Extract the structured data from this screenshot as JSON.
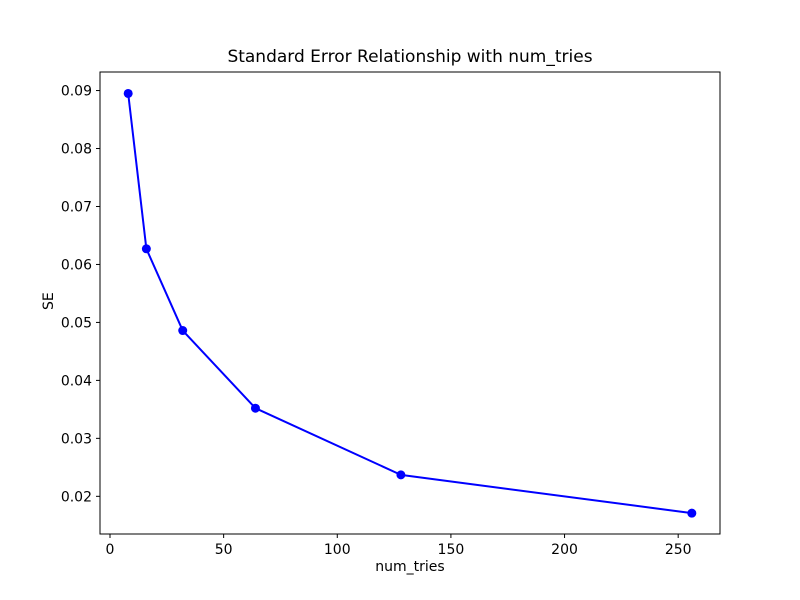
{
  "figure": {
    "background": "#ffffff",
    "text_color": "#000000",
    "spine_color": "#000000"
  },
  "chart_data": {
    "type": "line",
    "title": "Standard Error Relationship with num_tries",
    "xlabel": "num_tries",
    "ylabel": "SE",
    "x": [
      8,
      16,
      32,
      64,
      128,
      256
    ],
    "y": [
      0.0895,
      0.0627,
      0.0486,
      0.0352,
      0.0237,
      0.0171
    ],
    "line_color": "#0000ff",
    "marker": "circle",
    "marker_color": "#0000ff",
    "xticks": [
      0,
      50,
      100,
      150,
      200,
      250
    ],
    "xtick_labels": [
      "0",
      "50",
      "100",
      "150",
      "200",
      "250"
    ],
    "yticks": [
      0.02,
      0.03,
      0.04,
      0.05,
      0.06,
      0.07,
      0.08,
      0.09
    ],
    "ytick_labels": [
      "0.02",
      "0.03",
      "0.04",
      "0.05",
      "0.06",
      "0.07",
      "0.08",
      "0.09"
    ],
    "xlim": [
      -4.4,
      268.4
    ],
    "ylim": [
      0.0135,
      0.0932
    ],
    "grid": false,
    "legend": null
  }
}
